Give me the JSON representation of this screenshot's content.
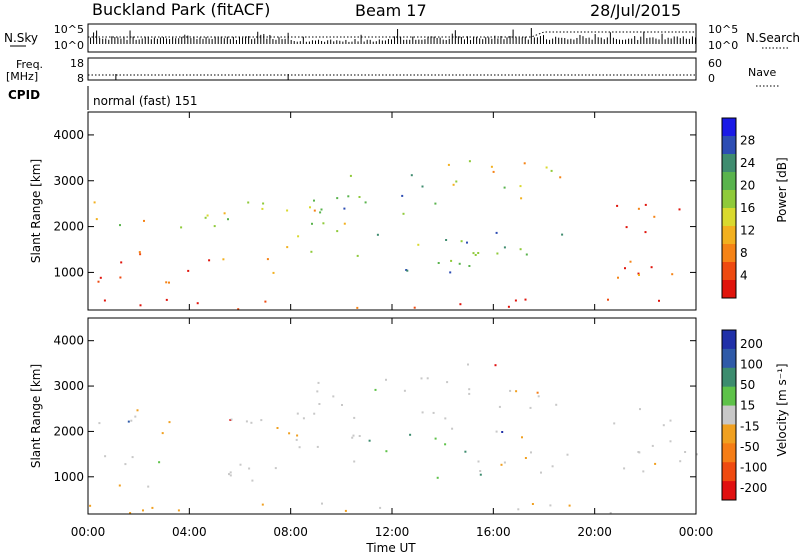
{
  "header": {
    "site": "Buckland Park (fitACF)",
    "beam": "Beam 17",
    "date": "28/Jul/2015"
  },
  "summary": {
    "nsky_label": "N.Sky",
    "nsearch_label": "N.Search",
    "freq_label_1": "Freq.",
    "freq_label_2": "[MHz]",
    "nave_label": "Nave",
    "cpid_label": "CPID",
    "cpid_text": "normal (fast) 151",
    "noise_ticks_left": [
      "10^5",
      "10^0"
    ],
    "noise_ticks_right": [
      "10^5",
      "10^0"
    ],
    "freq_ticks": [
      "18",
      "8"
    ],
    "nave_ticks": [
      "60",
      "0"
    ]
  },
  "chart_data": [
    {
      "type": "heatmap",
      "name": "power",
      "ylabel": "Slant Range [km]",
      "ylim": [
        180,
        4500
      ],
      "yticks": [
        "1000",
        "2000",
        "3000",
        "4000"
      ],
      "xlim": [
        0,
        24
      ],
      "colorbar": {
        "label": "Power [dB]",
        "ticks": [
          "4",
          "8",
          "12",
          "16",
          "20",
          "24",
          "28"
        ],
        "colors": [
          "#1a1ae6",
          "#2d4db3",
          "#3f8c6f",
          "#59b34d",
          "#8fca3a",
          "#d9d92e",
          "#f2b01f",
          "#f58316",
          "#ee4a10",
          "#e0140c"
        ]
      }
    },
    {
      "type": "heatmap",
      "name": "velocity",
      "ylabel": "Slant Range [km]",
      "ylim": [
        180,
        4500
      ],
      "yticks": [
        "1000",
        "2000",
        "3000",
        "4000"
      ],
      "xlim": [
        0,
        24
      ],
      "colorbar": {
        "label": "Velocity [m s⁻¹]",
        "ticks": [
          "200",
          "100",
          "50",
          "15",
          "-15",
          "-50",
          "-100",
          "-200"
        ],
        "colors": [
          "#2030a8",
          "#2f5aa8",
          "#3c8c6e",
          "#5ec249",
          "#c8c8c8",
          "#f0a020",
          "#f57d16",
          "#ef4a10",
          "#e01010"
        ]
      }
    }
  ],
  "xaxis": {
    "label": "Time UT",
    "ticks": [
      "00:00",
      "04:00",
      "08:00",
      "12:00",
      "16:00",
      "20:00",
      "00:00"
    ]
  }
}
